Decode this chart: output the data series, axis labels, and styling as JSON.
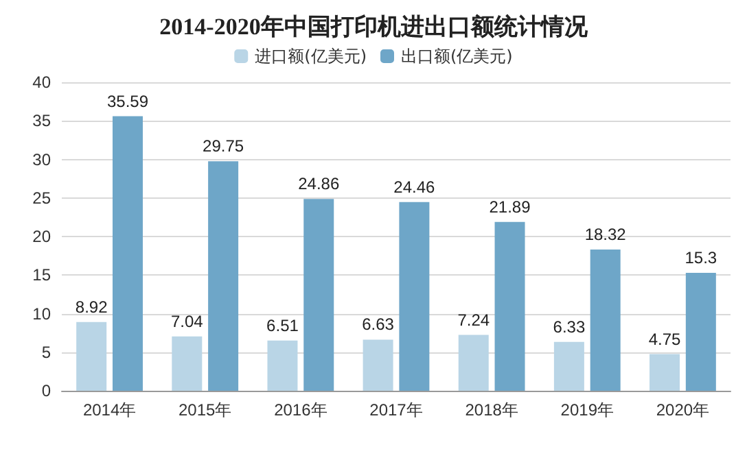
{
  "chart_data": {
    "type": "bar",
    "title": "2014-2020年中国打印机进出口额统计情况",
    "categories": [
      "2014年",
      "2015年",
      "2016年",
      "2017年",
      "2018年",
      "2019年",
      "2020年"
    ],
    "series": [
      {
        "name": "进口额(亿美元)",
        "color": "#b9d5e6",
        "values": [
          8.92,
          7.04,
          6.51,
          6.63,
          7.24,
          6.33,
          4.75
        ]
      },
      {
        "name": "出口额(亿美元)",
        "color": "#6ea6c8",
        "values": [
          35.59,
          29.75,
          24.86,
          24.46,
          21.89,
          18.32,
          15.3
        ]
      }
    ],
    "ylim": [
      0,
      40
    ],
    "yticks": [
      0,
      5,
      10,
      15,
      20,
      25,
      30,
      35,
      40
    ],
    "grid": "y",
    "legend": "top",
    "data_labels": true
  }
}
